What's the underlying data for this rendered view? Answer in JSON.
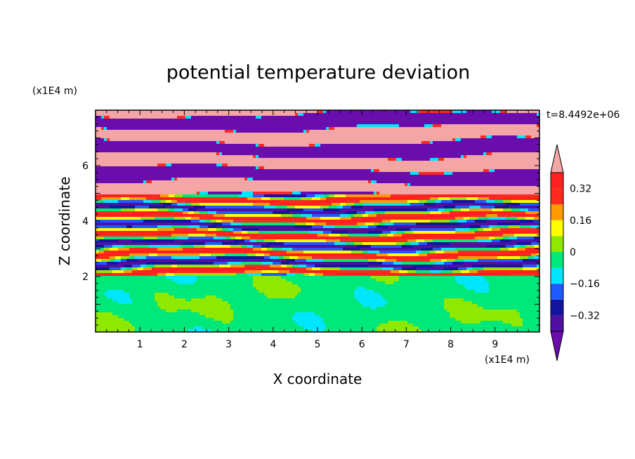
{
  "chart_data": {
    "type": "heatmap",
    "title": "potential temperature deviation",
    "xlabel": "X coordinate",
    "ylabel": "Z coordinate",
    "x_unit": "(x1E4 m)",
    "y_unit": "(x1E4 m)",
    "time_label": "t=8.4492e+06",
    "xlim": [
      0,
      10
    ],
    "ylim": [
      0,
      8
    ],
    "x_ticks": [
      "1",
      "2",
      "3",
      "4",
      "5",
      "6",
      "7",
      "8",
      "9"
    ],
    "y_ticks": [
      "2",
      "4",
      "6"
    ],
    "colorbar": {
      "levels": [
        -0.4,
        -0.32,
        -0.24,
        -0.16,
        -0.08,
        0,
        0.08,
        0.16,
        0.24,
        0.32,
        0.4
      ],
      "tick_labels": [
        "0.32",
        "0.16",
        "0",
        "−0.16",
        "−0.32"
      ],
      "tick_values": [
        0.32,
        0.16,
        0,
        -0.16,
        -0.32
      ],
      "colors": [
        "#6a0dad",
        "#5010a0",
        "#1414a0",
        "#1e5aff",
        "#00e6ff",
        "#00e87a",
        "#8ee800",
        "#ffff00",
        "#ff9a00",
        "#ff2a1e",
        "#ff2020",
        "#f4a5a5"
      ],
      "low_extend_color": "#6a0dad",
      "high_extend_color": "#f4a5a5"
    },
    "regions": [
      {
        "z_range": [
          0,
          2.0
        ],
        "description": "near-neutral layer",
        "dominant": [
          "#00e87a",
          "#8ee800"
        ]
      },
      {
        "z_range": [
          2.0,
          5.0
        ],
        "description": "mixed perturbations",
        "dominant": [
          "#1414a0",
          "#00e6ff",
          "#ffff00",
          "#ff2a1e",
          "#ff9a00"
        ]
      },
      {
        "z_range": [
          5.0,
          8.0
        ],
        "description": "alternating extreme layers",
        "dominant": [
          "#f4a5a5",
          "#6a0dad"
        ]
      }
    ]
  }
}
